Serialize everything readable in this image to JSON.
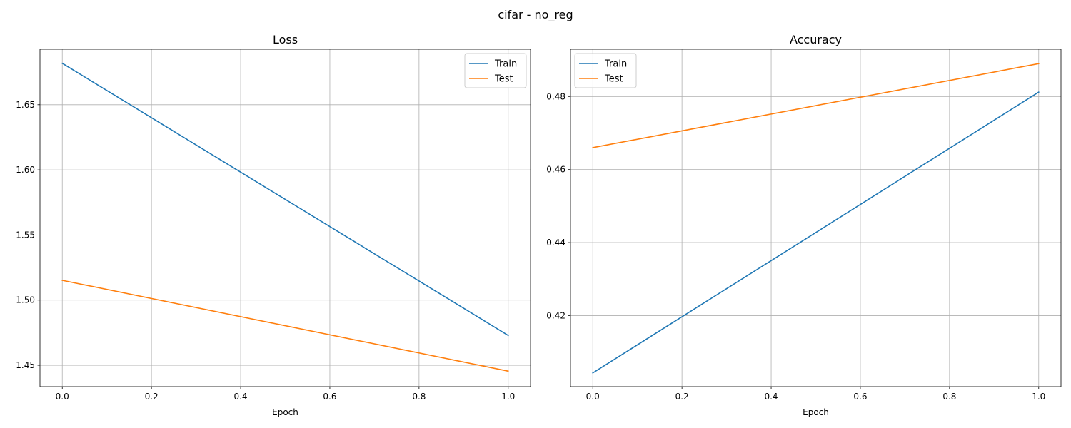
{
  "figure": {
    "suptitle": "cifar - no_reg"
  },
  "chart_data": [
    {
      "type": "line",
      "title": "Loss",
      "xlabel": "Epoch",
      "ylabel": "",
      "x": [
        0.0,
        1.0
      ],
      "xlim": [
        -0.05,
        1.05
      ],
      "ylim": [
        1.4336,
        1.6926
      ],
      "xticks": [
        "0.0",
        "0.2",
        "0.4",
        "0.6",
        "0.8",
        "1.0"
      ],
      "yticks": [
        "1.45",
        "1.50",
        "1.55",
        "1.60",
        "1.65"
      ],
      "grid": true,
      "legend": "top-right",
      "series": [
        {
          "name": "Train",
          "color": "#1f77b4",
          "values": [
            1.6818,
            1.4729
          ]
        },
        {
          "name": "Test",
          "color": "#ff7f0e",
          "values": [
            1.5152,
            1.4455
          ]
        }
      ]
    },
    {
      "type": "line",
      "title": "Accuracy",
      "xlabel": "Epoch",
      "ylabel": "",
      "x": [
        0.0,
        1.0
      ],
      "xlim": [
        -0.05,
        1.05
      ],
      "ylim": [
        0.40055,
        0.49295
      ],
      "xticks": [
        "0.0",
        "0.2",
        "0.4",
        "0.6",
        "0.8",
        "1.0"
      ],
      "yticks": [
        "0.42",
        "0.44",
        "0.46",
        "0.48"
      ],
      "grid": true,
      "legend": "top-left",
      "series": [
        {
          "name": "Train",
          "color": "#1f77b4",
          "values": [
            0.4043,
            0.4812
          ]
        },
        {
          "name": "Test",
          "color": "#ff7f0e",
          "values": [
            0.466,
            0.489
          ]
        }
      ]
    }
  ]
}
